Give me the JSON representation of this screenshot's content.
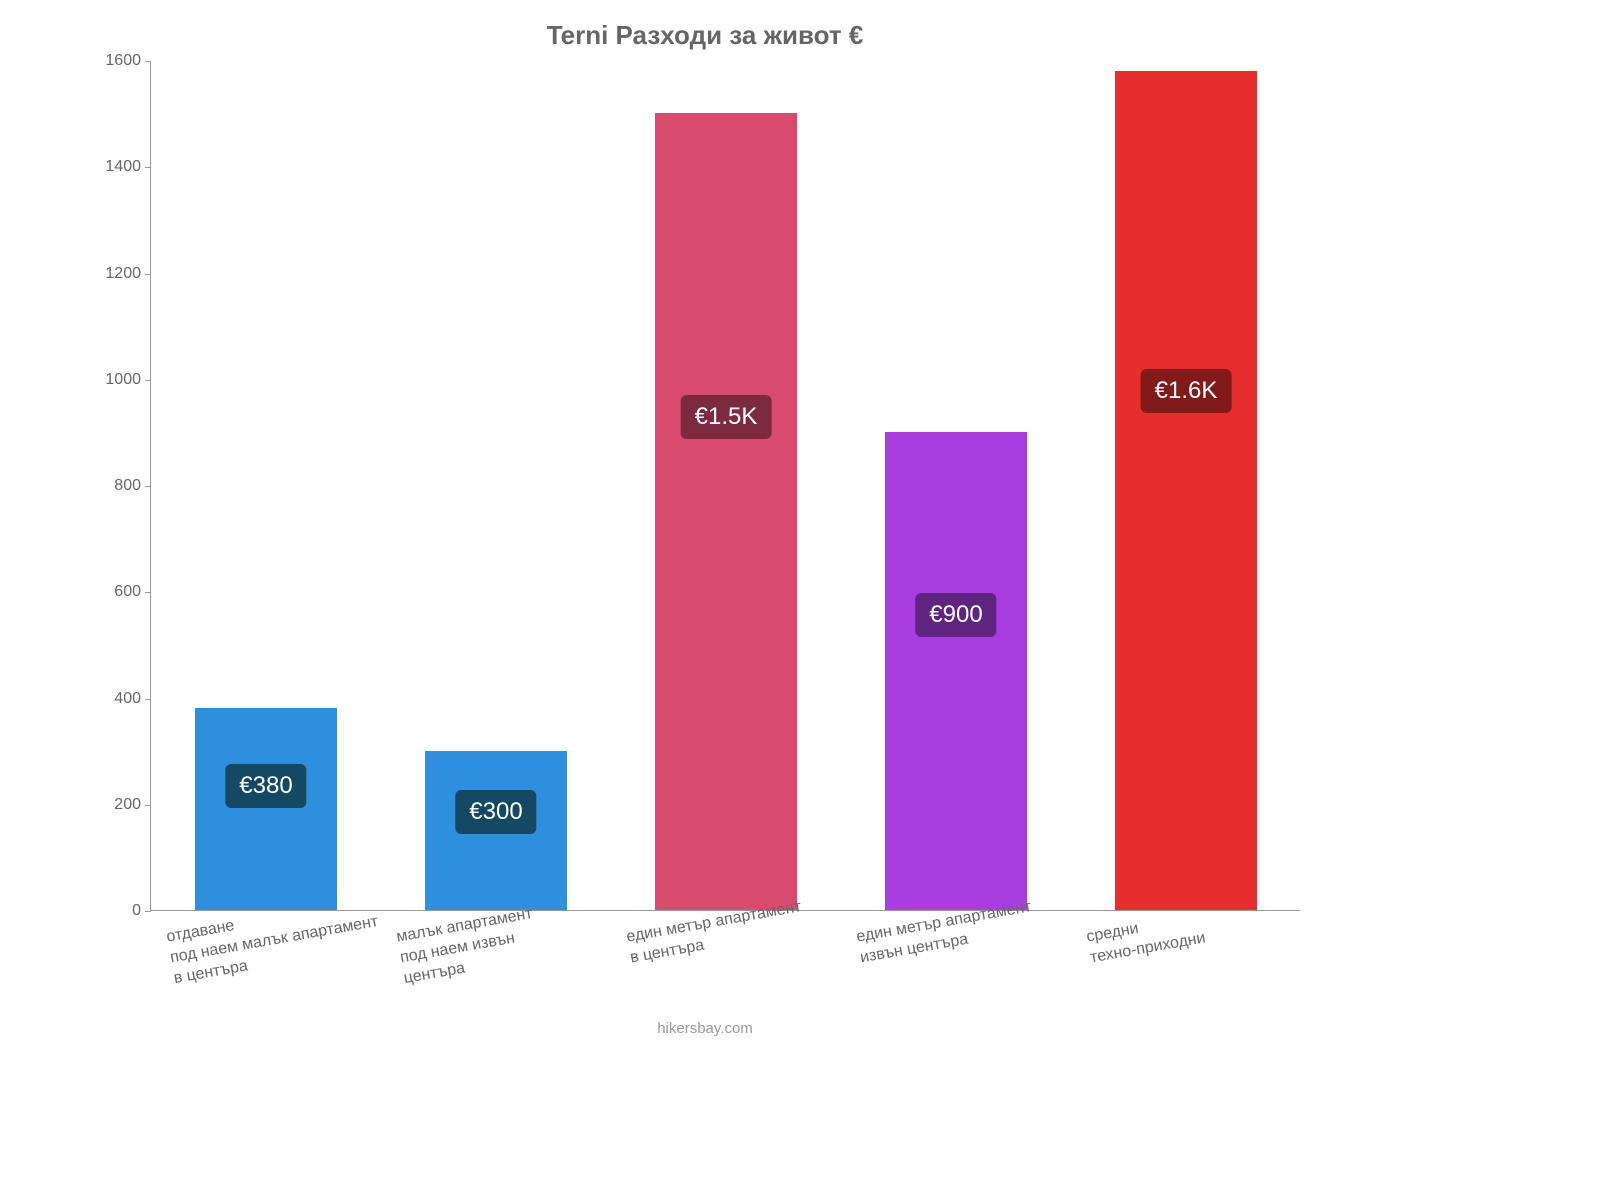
{
  "chart": {
    "type": "bar",
    "title": "Terni Разходи за живот €",
    "title_fontsize": 26,
    "title_color": "#666666",
    "background_color": "#ffffff",
    "axis_color": "#999999",
    "tick_label_color": "#666666",
    "tick_label_fontsize": 16,
    "ylim": [
      0,
      1600
    ],
    "ytick_step": 200,
    "yticks": [
      0,
      200,
      400,
      600,
      800,
      1000,
      1200,
      1400,
      1600
    ],
    "bar_width_ratio": 0.62,
    "bars": [
      {
        "category": "отдаване\nпод наем малък апартамент\nв центъра",
        "value": 380,
        "display_label": "€380",
        "bar_color": "#2d8fdd",
        "label_bg": "#154862",
        "label_text_color": "#ffffff"
      },
      {
        "category": "малък апартамент\nпод наем извън\nцентъра",
        "value": 300,
        "display_label": "€300",
        "bar_color": "#2d8fdd",
        "label_bg": "#154862",
        "label_text_color": "#ffffff"
      },
      {
        "category": "един метър апартамент\nв центъра",
        "value": 1500,
        "display_label": "€1.5K",
        "bar_color": "#d94a6f",
        "label_bg": "#7c2a3f",
        "label_text_color": "#ffffff"
      },
      {
        "category": "един метър апартамент\nизвън центъра",
        "value": 900,
        "display_label": "€900",
        "bar_color": "#a93ee0",
        "label_bg": "#5f2380",
        "label_text_color": "#ffffff"
      },
      {
        "category": "средни\nтехно-приходни",
        "value": 1580,
        "display_label": "€1.6K",
        "bar_color": "#e62e2e",
        "label_bg": "#821a1a",
        "label_text_color": "#ffffff"
      }
    ],
    "attribution": "hikersbay.com",
    "attribution_color": "#999999",
    "attribution_fontsize": 15
  }
}
